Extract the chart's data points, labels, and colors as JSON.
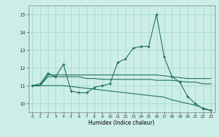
{
  "title": "",
  "xlabel": "Humidex (Indice chaleur)",
  "background_color": "#cceee8",
  "grid_color": "#aaddcc",
  "line_color": "#1a6b5a",
  "x": [
    0,
    1,
    2,
    3,
    4,
    5,
    6,
    7,
    8,
    9,
    10,
    11,
    12,
    13,
    14,
    15,
    16,
    17,
    18,
    19,
    20,
    21,
    22,
    23
  ],
  "y_main": [
    11.0,
    11.1,
    11.7,
    11.5,
    12.2,
    10.7,
    10.6,
    10.6,
    10.9,
    11.0,
    11.1,
    12.3,
    12.5,
    13.1,
    13.2,
    13.2,
    15.0,
    12.6,
    11.5,
    11.2,
    10.4,
    10.0,
    9.7,
    9.6
  ],
  "y_line1": [
    11.0,
    11.0,
    11.6,
    11.6,
    11.6,
    11.6,
    11.6,
    11.6,
    11.6,
    11.6,
    11.6,
    11.6,
    11.6,
    11.6,
    11.6,
    11.6,
    11.6,
    11.55,
    11.5,
    11.45,
    11.4,
    11.4,
    11.4,
    11.4
  ],
  "y_line2": [
    11.0,
    11.0,
    11.5,
    11.5,
    11.5,
    11.5,
    11.5,
    11.4,
    11.4,
    11.35,
    11.35,
    11.35,
    11.35,
    11.35,
    11.35,
    11.35,
    11.3,
    11.3,
    11.3,
    11.25,
    11.2,
    11.2,
    11.1,
    11.1
  ],
  "y_trend": [
    11.0,
    11.0,
    11.0,
    11.0,
    11.0,
    10.95,
    10.9,
    10.85,
    10.8,
    10.75,
    10.7,
    10.65,
    10.6,
    10.55,
    10.5,
    10.45,
    10.4,
    10.35,
    10.2,
    10.1,
    10.0,
    9.9,
    9.75,
    9.6
  ],
  "ylim": [
    9.5,
    15.5
  ],
  "yticks": [
    10,
    11,
    12,
    13,
    14,
    15
  ],
  "xlim": [
    -0.5,
    23.5
  ],
  "xticks": [
    0,
    1,
    2,
    3,
    4,
    5,
    6,
    7,
    8,
    9,
    10,
    11,
    12,
    13,
    14,
    15,
    16,
    17,
    18,
    19,
    20,
    21,
    22,
    23
  ],
  "figsize": [
    3.2,
    2.0
  ],
  "dpi": 100
}
